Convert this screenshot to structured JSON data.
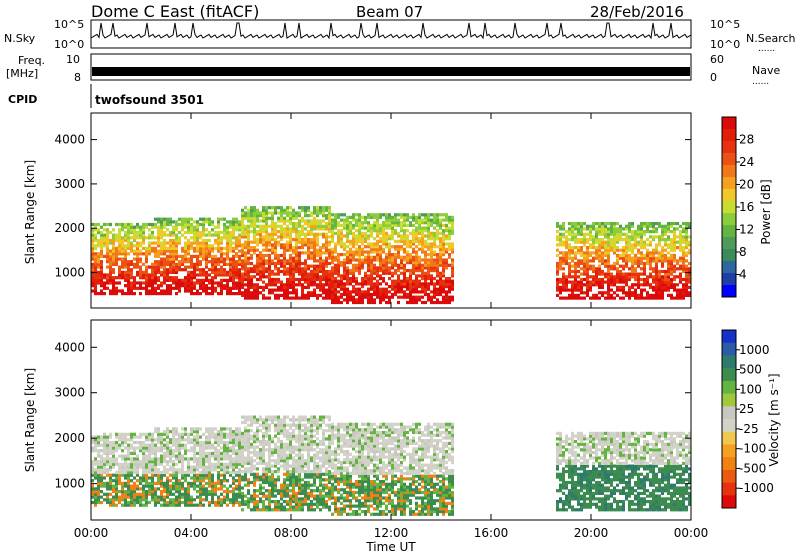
{
  "header": {
    "station": "Dome C East (fitACF)",
    "beam": "Beam 07",
    "date": "28/Feb/2016"
  },
  "strips": {
    "nsky_label": "N.Sky",
    "nsky_ticks": [
      "10^5",
      "10^0"
    ],
    "nsearch_label": "N.Search",
    "nsearch_ticks": [
      "10^5",
      "10^0"
    ],
    "freq_label_1": "Freq.",
    "freq_label_2": "[MHz]",
    "freq_ticks": [
      "10",
      "8"
    ],
    "nave_label": "Nave",
    "nave_ticks": [
      "60",
      "0"
    ],
    "cpid_label": "CPID",
    "cpid_value": "twofsound 3501",
    "dots": "......"
  },
  "chart_data": [
    {
      "type": "heatmap",
      "title": "",
      "xlabel": "Time UT",
      "ylabel": "Slant Range [km]",
      "x_ticks": [
        "00:00",
        "04:00",
        "08:00",
        "12:00",
        "16:00",
        "20:00",
        "00:00"
      ],
      "y_ticks": [
        1000,
        2000,
        3000,
        4000
      ],
      "ylim": [
        200,
        4600
      ],
      "xlim_hours": [
        0,
        24
      ],
      "colorbar_label": "Power [dB]",
      "colorbar_ticks": [
        "28",
        "24",
        "20",
        "16",
        "12",
        "8",
        "4"
      ],
      "colorbar_colors": [
        "#0000ff",
        "#1e3ea8",
        "#2f66a0",
        "#3a8a5a",
        "#4f9a5a",
        "#64b441",
        "#8ccd3c",
        "#c8dc32",
        "#f0c828",
        "#f5a01e",
        "#f07819",
        "#eb5014",
        "#e6320f",
        "#e11e0a",
        "#dc0a0a"
      ],
      "bands": [
        {
          "start": 0.0,
          "end": 2.5,
          "low": 500,
          "high": 2100
        },
        {
          "start": 2.5,
          "end": 6.0,
          "low": 500,
          "high": 2200
        },
        {
          "start": 6.0,
          "end": 9.5,
          "low": 400,
          "high": 2500
        },
        {
          "start": 9.5,
          "end": 14.5,
          "low": 300,
          "high": 2300
        },
        {
          "start": 18.5,
          "end": 24.0,
          "low": 400,
          "high": 2100
        }
      ]
    },
    {
      "type": "heatmap",
      "title": "",
      "xlabel": "Time UT",
      "ylabel": "Slant Range [km]",
      "x_ticks": [
        "00:00",
        "04:00",
        "08:00",
        "12:00",
        "16:00",
        "20:00",
        "00:00"
      ],
      "y_ticks": [
        1000,
        2000,
        3000,
        4000
      ],
      "ylim": [
        200,
        4600
      ],
      "xlim_hours": [
        0,
        24
      ],
      "colorbar_label": "Velocity [m s⁻¹]",
      "colorbar_ticks": [
        "1000",
        "500",
        "100",
        "25",
        "-25",
        "-100",
        "-500",
        "-1000"
      ],
      "colorbar_colors": [
        "#1432c8",
        "#2a5aa8",
        "#2f7a6a",
        "#3c8c50",
        "#64b441",
        "#a0c83c",
        "#c8c8c0",
        "#d2d2c8",
        "#f0c850",
        "#f5a01e",
        "#f08214",
        "#eb5a0f",
        "#e6320f",
        "#dc0a0a"
      ]
    }
  ]
}
